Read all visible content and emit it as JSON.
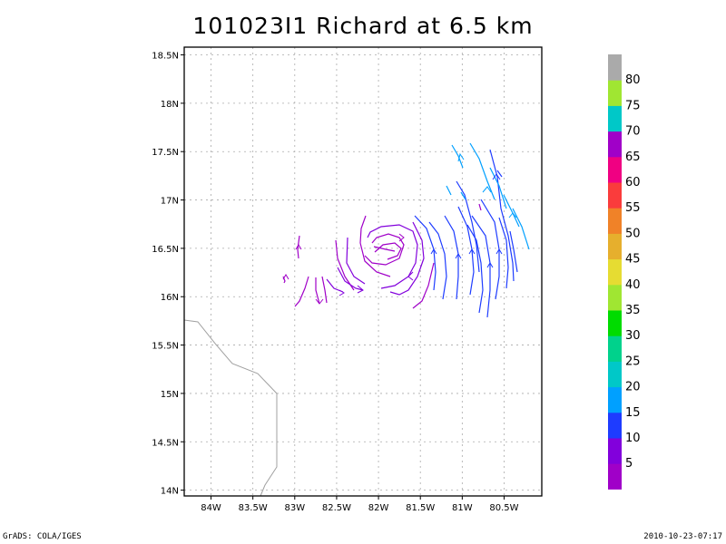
{
  "title": "101023I1 Richard at 6.5 km",
  "footer": {
    "left": "GrADS: COLA/IGES",
    "right": "2010-10-23-07:17"
  },
  "map": {
    "lon_labels": [
      "84W",
      "83.5W",
      "83W",
      "82.5W",
      "82W",
      "81.5W",
      "81W",
      "80.5W"
    ],
    "lat_labels": [
      "14N",
      "14.5N",
      "15N",
      "15.5N",
      "16N",
      "16.5N",
      "17N",
      "17.5N",
      "18N",
      "18.5N"
    ],
    "lon_range": [
      -84.32,
      -80.05
    ],
    "lat_range": [
      13.94,
      18.58
    ]
  },
  "colorbar": {
    "labels": [
      "5",
      "10",
      "15",
      "20",
      "25",
      "30",
      "35",
      "40",
      "45",
      "50",
      "55",
      "60",
      "65",
      "70",
      "75",
      "80"
    ],
    "colors": [
      "#a000c8",
      "#8200dc",
      "#1e3cff",
      "#00a0ff",
      "#00c8c8",
      "#00d28c",
      "#00dc00",
      "#a0e632",
      "#e6dc32",
      "#e6af2d",
      "#f08228",
      "#fa3c3c",
      "#f00082",
      "#a000c8",
      "#00c8c8",
      "#a0e632",
      "#aaaaaa"
    ]
  }
}
